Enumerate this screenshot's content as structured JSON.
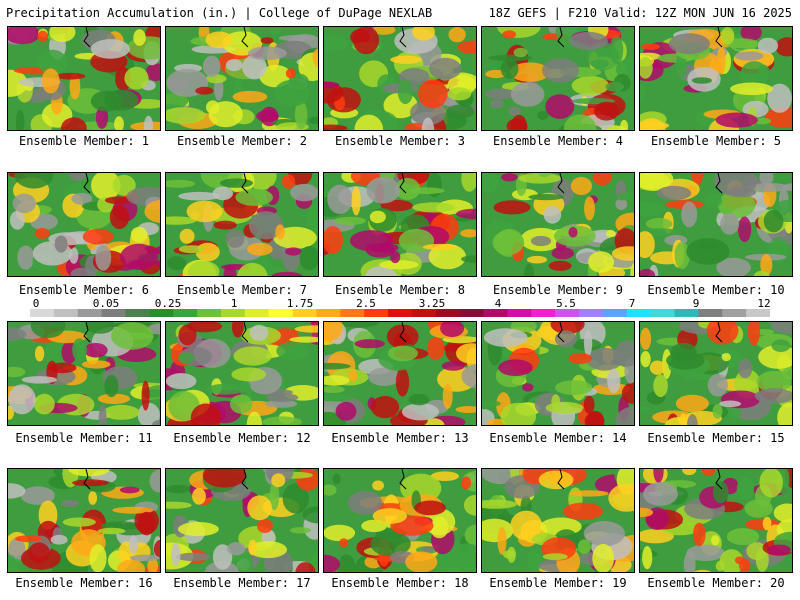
{
  "header": {
    "title_left": "Precipitation Accumulation (in.) | College of DuPage NEXLAB",
    "title_right": "18Z GEFS | F210 Valid: 12Z MON JUN 16 2025"
  },
  "colorbar": {
    "tick_labels": [
      "0",
      "0.05",
      "0.25",
      "1",
      "1.75",
      "2.5",
      "3.25",
      "4",
      "5.5",
      "7",
      "9",
      "12"
    ],
    "colors": [
      "#d8d8d8",
      "#c0c0c0",
      "#9a9a9a",
      "#7e7e7e",
      "#4e7f4e",
      "#2e8b2e",
      "#3ea33e",
      "#6dc03a",
      "#a8d82c",
      "#e0ee2a",
      "#ffff30",
      "#ffd020",
      "#ffa818",
      "#ff7814",
      "#ff3c10",
      "#e01010",
      "#c01010",
      "#a00a20",
      "#8a0a3a",
      "#b00a6a",
      "#d010a0",
      "#f020d0",
      "#d050f0",
      "#a080ff",
      "#60a0ff",
      "#20e0ff",
      "#40d8d8",
      "#30b8b8",
      "#808080",
      "#a0a0a0",
      "#c8c8c8"
    ]
  },
  "members": [
    {
      "label": "Ensemble Member: 1"
    },
    {
      "label": "Ensemble Member: 2"
    },
    {
      "label": "Ensemble Member: 3"
    },
    {
      "label": "Ensemble Member: 4"
    },
    {
      "label": "Ensemble Member: 5"
    },
    {
      "label": "Ensemble Member: 6"
    },
    {
      "label": "Ensemble Member: 7"
    },
    {
      "label": "Ensemble Member: 8"
    },
    {
      "label": "Ensemble Member: 9"
    },
    {
      "label": "Ensemble Member: 10"
    },
    {
      "label": "Ensemble Member: 11"
    },
    {
      "label": "Ensemble Member: 12"
    },
    {
      "label": "Ensemble Member: 13"
    },
    {
      "label": "Ensemble Member: 14"
    },
    {
      "label": "Ensemble Member: 15"
    },
    {
      "label": "Ensemble Member: 16"
    },
    {
      "label": "Ensemble Member: 17"
    },
    {
      "label": "Ensemble Member: 18"
    },
    {
      "label": "Ensemble Member: 19"
    },
    {
      "label": "Ensemble Member: 20"
    }
  ]
}
